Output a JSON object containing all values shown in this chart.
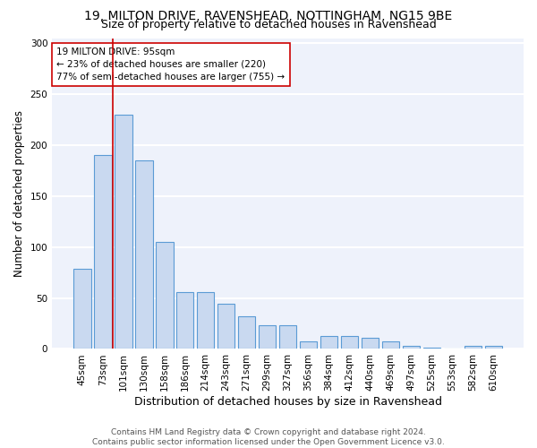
{
  "title1": "19, MILTON DRIVE, RAVENSHEAD, NOTTINGHAM, NG15 9BE",
  "title2": "Size of property relative to detached houses in Ravenshead",
  "xlabel": "Distribution of detached houses by size in Ravenshead",
  "ylabel": "Number of detached properties",
  "categories": [
    "45sqm",
    "73sqm",
    "101sqm",
    "130sqm",
    "158sqm",
    "186sqm",
    "214sqm",
    "243sqm",
    "271sqm",
    "299sqm",
    "327sqm",
    "356sqm",
    "384sqm",
    "412sqm",
    "440sqm",
    "469sqm",
    "497sqm",
    "525sqm",
    "553sqm",
    "582sqm",
    "610sqm"
  ],
  "values": [
    79,
    190,
    230,
    185,
    105,
    56,
    56,
    44,
    32,
    23,
    23,
    7,
    13,
    13,
    11,
    7,
    3,
    1,
    0,
    3,
    3
  ],
  "bar_color": "#c9d9f0",
  "bar_edge_color": "#5b9bd5",
  "annotation_box_text": "19 MILTON DRIVE: 95sqm\n← 23% of detached houses are smaller (220)\n77% of semi-detached houses are larger (755) →",
  "vline_color": "#cc0000",
  "vline_x": 1.5,
  "ylim": [
    0,
    305
  ],
  "yticks": [
    0,
    50,
    100,
    150,
    200,
    250,
    300
  ],
  "background_color": "#eef2fb",
  "grid_color": "#ffffff",
  "footer_text": "Contains HM Land Registry data © Crown copyright and database right 2024.\nContains public sector information licensed under the Open Government Licence v3.0.",
  "title1_fontsize": 10,
  "title2_fontsize": 9,
  "xlabel_fontsize": 9,
  "ylabel_fontsize": 8.5,
  "tick_fontsize": 7.5,
  "annotation_fontsize": 7.5,
  "footer_fontsize": 6.5
}
